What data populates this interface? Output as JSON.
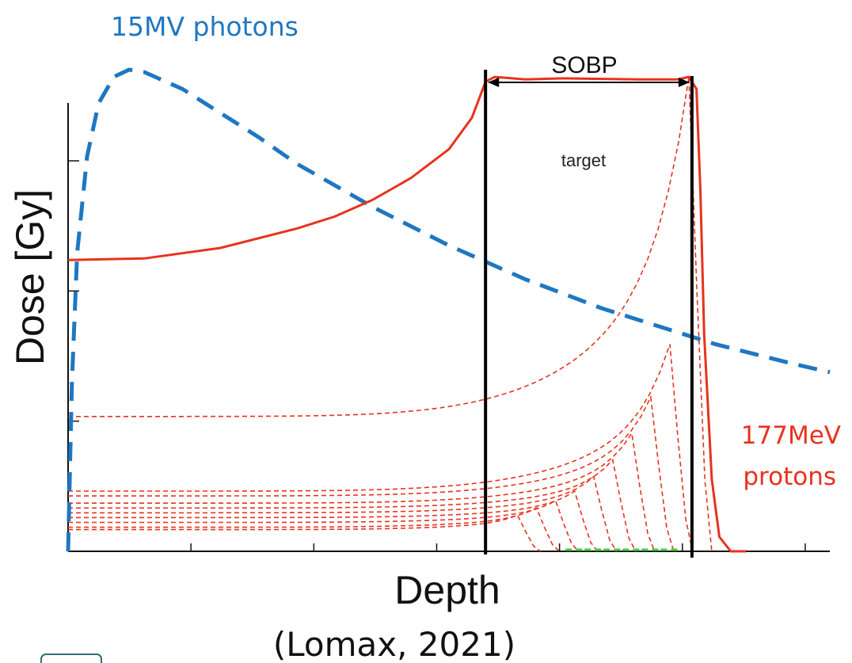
{
  "chart_data": {
    "type": "line",
    "xlabel": "Depth",
    "ylabel": "Dose [Gy]",
    "caption": "(Lomax, 2021)",
    "grid": false,
    "axes": {
      "x_ticks": 6,
      "y_ticks": 3,
      "tick_labels": false
    },
    "sobp": {
      "label": "SOBP",
      "region_label": "target",
      "start": 0.548,
      "end": 0.819
    },
    "series": [
      {
        "name": "15MV photons",
        "color": "#1f77c1",
        "style": "dashed",
        "points": [
          [
            0.0,
            0.0
          ],
          [
            0.005,
            0.35
          ],
          [
            0.012,
            0.62
          ],
          [
            0.025,
            0.82
          ],
          [
            0.04,
            0.93
          ],
          [
            0.06,
            0.985
          ],
          [
            0.08,
            1.0
          ],
          [
            0.1,
            0.995
          ],
          [
            0.15,
            0.96
          ],
          [
            0.2,
            0.91
          ],
          [
            0.25,
            0.86
          ],
          [
            0.3,
            0.805
          ],
          [
            0.35,
            0.76
          ],
          [
            0.4,
            0.715
          ],
          [
            0.45,
            0.675
          ],
          [
            0.5,
            0.635
          ],
          [
            0.55,
            0.6
          ],
          [
            0.6,
            0.565
          ],
          [
            0.65,
            0.535
          ],
          [
            0.7,
            0.505
          ],
          [
            0.75,
            0.48
          ],
          [
            0.8,
            0.455
          ],
          [
            0.85,
            0.43
          ],
          [
            0.9,
            0.41
          ],
          [
            0.95,
            0.39
          ],
          [
            1.0,
            0.372
          ]
        ]
      },
      {
        "name": "177MeV protons",
        "color": "#e8321e",
        "style": "solid",
        "points": [
          [
            0.0,
            0.605
          ],
          [
            0.1,
            0.608
          ],
          [
            0.2,
            0.63
          ],
          [
            0.3,
            0.67
          ],
          [
            0.35,
            0.695
          ],
          [
            0.4,
            0.73
          ],
          [
            0.45,
            0.775
          ],
          [
            0.5,
            0.835
          ],
          [
            0.53,
            0.9
          ],
          [
            0.548,
            0.975
          ],
          [
            0.56,
            0.985
          ],
          [
            0.6,
            0.98
          ],
          [
            0.65,
            0.982
          ],
          [
            0.7,
            0.981
          ],
          [
            0.75,
            0.98
          ],
          [
            0.8,
            0.98
          ],
          [
            0.815,
            0.985
          ],
          [
            0.825,
            0.96
          ],
          [
            0.83,
            0.75
          ],
          [
            0.835,
            0.45
          ],
          [
            0.845,
            0.15
          ],
          [
            0.855,
            0.03
          ],
          [
            0.87,
            0.0
          ],
          [
            0.89,
            0.0
          ]
        ]
      },
      {
        "name": "",
        "color": "#e8321e",
        "style": "dashed",
        "role": "individual Bragg peaks",
        "peaks": [
          {
            "peak_x": 0.815,
            "peak_y": 0.985,
            "entrance": 0.28
          },
          {
            "peak_x": 0.79,
            "peak_y": 0.43,
            "entrance": 0.125
          },
          {
            "peak_x": 0.765,
            "peak_y": 0.32,
            "entrance": 0.115
          },
          {
            "peak_x": 0.74,
            "peak_y": 0.245,
            "entrance": 0.1
          },
          {
            "peak_x": 0.715,
            "peak_y": 0.19,
            "entrance": 0.09
          },
          {
            "peak_x": 0.69,
            "peak_y": 0.155,
            "entrance": 0.08
          },
          {
            "peak_x": 0.665,
            "peak_y": 0.125,
            "entrance": 0.07
          },
          {
            "peak_x": 0.64,
            "peak_y": 0.105,
            "entrance": 0.06
          },
          {
            "peak_x": 0.615,
            "peak_y": 0.09,
            "entrance": 0.05
          },
          {
            "peak_x": 0.59,
            "peak_y": 0.075,
            "entrance": 0.045
          }
        ]
      }
    ]
  }
}
